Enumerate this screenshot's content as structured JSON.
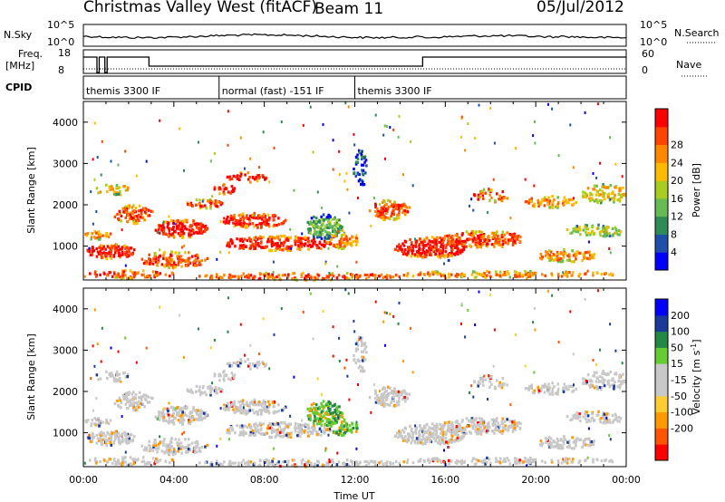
{
  "header": {
    "title": "Christmas Valley West (fitACF)",
    "beam": "Beam 11",
    "date": "05/Jul/2012"
  },
  "status_panels": {
    "nsky_label": "N.Sky",
    "nsearch_label": "N.Search",
    "nsky_ticks": [
      "10^5",
      "10^0"
    ],
    "nsky_ticks_right": [
      "10^5",
      "10^0"
    ],
    "freq_label_1": "Freq.",
    "freq_label_2": "[MHz]",
    "freq_ticks": [
      "18",
      "8"
    ],
    "nave_label": "Nave",
    "nave_ticks": [
      "60",
      "0"
    ],
    "cpid_label": "CPID",
    "cpid_segments": [
      {
        "start_hour": 0,
        "end_hour": 6,
        "label": "themis 3300 IF"
      },
      {
        "start_hour": 6,
        "end_hour": 12,
        "label": "normal (fast) -151 IF"
      },
      {
        "start_hour": 12,
        "end_hour": 24,
        "label": "themis 3300 IF"
      }
    ]
  },
  "colors": {
    "power": [
      "#0000ff",
      "#1f4fa8",
      "#2e8b57",
      "#66bb55",
      "#aacc22",
      "#ffbb00",
      "#ff8800",
      "#ff4400",
      "#ff0000"
    ],
    "velocity": [
      "#ff0000",
      "#ff5500",
      "#ff9900",
      "#ffcc33",
      "#c8c8c8",
      "#c8c8c8",
      "#66cc33",
      "#228844",
      "#1a3a99",
      "#0000ff"
    ],
    "ground_scatter": "#c8c8c8"
  },
  "chart_data": [
    {
      "type": "heatmap",
      "title": "",
      "xlabel": "",
      "ylabel": "Slant Range [km]",
      "x_range_hours": [
        0,
        24
      ],
      "ylim": [
        180,
        4500
      ],
      "y_ticks": [
        "1000",
        "2000",
        "3000",
        "4000"
      ],
      "colorbar": {
        "label": "Power [dB]",
        "range": [
          0,
          32
        ],
        "ticks": [
          "4",
          "8",
          "12",
          "16",
          "20",
          "24",
          "28"
        ]
      }
    },
    {
      "type": "heatmap",
      "title": "",
      "xlabel": "Time UT",
      "ylabel": "Slant Range [km]",
      "x_range_hours": [
        0,
        24
      ],
      "x_ticks": [
        "00:00",
        "04:00",
        "08:00",
        "12:00",
        "16:00",
        "20:00",
        "00:00"
      ],
      "ylim": [
        180,
        4500
      ],
      "y_ticks": [
        "1000",
        "2000",
        "3000",
        "4000"
      ],
      "colorbar": {
        "label": "Velocity [m s^-1]",
        "ticks": [
          "200",
          "100",
          "50",
          "15",
          "-15",
          "-50",
          "-100",
          "-200"
        ]
      }
    }
  ]
}
